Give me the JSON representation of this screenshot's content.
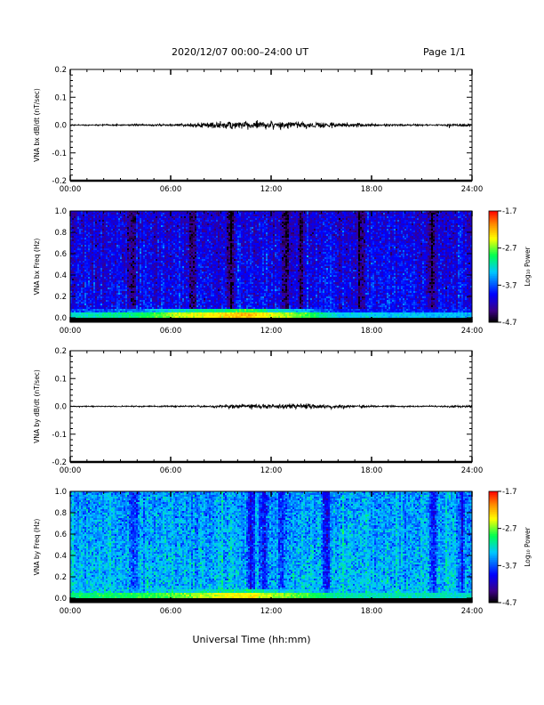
{
  "header": {
    "title": "2020/12/07  00:00–24:00 UT",
    "page": "Page 1/1"
  },
  "xaxis": {
    "label": "Universal Time (hh:mm)",
    "ticks": [
      "00:00",
      "06:00",
      "12:00",
      "18:00",
      "24:00"
    ],
    "range_hours": [
      0,
      24
    ]
  },
  "chart_data": [
    {
      "type": "line",
      "ylabel": "VNA bx dB/dt (nT/sec)",
      "ylim": [
        -0.2,
        0.2
      ],
      "yticks": [
        "0.2",
        "0.1",
        "0.0",
        "-0.1",
        "-0.2"
      ],
      "color": "#000000",
      "envelope": {
        "hours": [
          0,
          2,
          4,
          6,
          7,
          8,
          9,
          10,
          11,
          12,
          13,
          14,
          15,
          16,
          17,
          18,
          20,
          22,
          23.9,
          24
        ],
        "amplitude": [
          0.005,
          0.005,
          0.006,
          0.008,
          0.012,
          0.02,
          0.03,
          0.032,
          0.03,
          0.028,
          0.026,
          0.024,
          0.025,
          0.02,
          0.014,
          0.01,
          0.007,
          0.006,
          0.015,
          0.006
        ]
      }
    },
    {
      "type": "heatmap",
      "ylabel": "VNA bx Freq (Hz)",
      "ylim": [
        0,
        1.0
      ],
      "yticks": [
        "1.0",
        "0.8",
        "0.6",
        "0.4",
        "0.2",
        "0.0"
      ],
      "colorbar": {
        "label": "Log₁₀ Power",
        "ticks": [
          "-1.7",
          "-2.7",
          "-3.7",
          "-4.7"
        ],
        "range": [
          -4.7,
          -1.7
        ]
      },
      "background_level": -3.95,
      "low_freq_band": {
        "hours": [
          0,
          4,
          7,
          9,
          10.5,
          12,
          14,
          16,
          24
        ],
        "level": [
          -3.2,
          -3.0,
          -2.5,
          -2.4,
          -2.2,
          -2.5,
          -2.8,
          -3.3,
          -3.4
        ]
      },
      "dark_stripes_hours": [
        3.7,
        7.3,
        9.6,
        12.9,
        13.8,
        17.3,
        21.6
      ]
    },
    {
      "type": "line",
      "ylabel": "VNA by dB/dt (nT/sec)",
      "ylim": [
        -0.2,
        0.2
      ],
      "yticks": [
        "0.2",
        "0.1",
        "0.0",
        "-0.1",
        "-0.2"
      ],
      "color": "#000000",
      "envelope": {
        "hours": [
          0,
          2,
          4,
          6,
          8,
          9,
          10,
          11,
          12,
          13,
          14,
          14.5,
          15,
          16,
          17,
          18,
          20,
          22,
          23.9,
          24
        ],
        "amplitude": [
          0.004,
          0.004,
          0.005,
          0.006,
          0.008,
          0.012,
          0.018,
          0.02,
          0.018,
          0.02,
          0.024,
          0.02,
          0.016,
          0.012,
          0.009,
          0.007,
          0.005,
          0.005,
          0.012,
          0.005
        ]
      }
    },
    {
      "type": "heatmap",
      "ylabel": "VNA by Freq (Hz)",
      "ylim": [
        0,
        1.0
      ],
      "yticks": [
        "1.0",
        "0.8",
        "0.6",
        "0.4",
        "0.2",
        "0.0"
      ],
      "colorbar": {
        "label": "Log₁₀ Power",
        "ticks": [
          "-1.7",
          "-2.7",
          "-3.7",
          "-4.7"
        ],
        "range": [
          -4.7,
          -1.7
        ]
      },
      "background_level": -3.35,
      "low_freq_band": {
        "hours": [
          0,
          4,
          7,
          9,
          10.5,
          12,
          14,
          16,
          24
        ],
        "level": [
          -3.0,
          -2.9,
          -2.7,
          -2.5,
          -2.4,
          -2.6,
          -2.8,
          -3.1,
          -3.2
        ]
      },
      "dark_stripes_hours": [
        3.8,
        10.8,
        11.6,
        12.6,
        15.3,
        21.7,
        23.4
      ]
    }
  ]
}
